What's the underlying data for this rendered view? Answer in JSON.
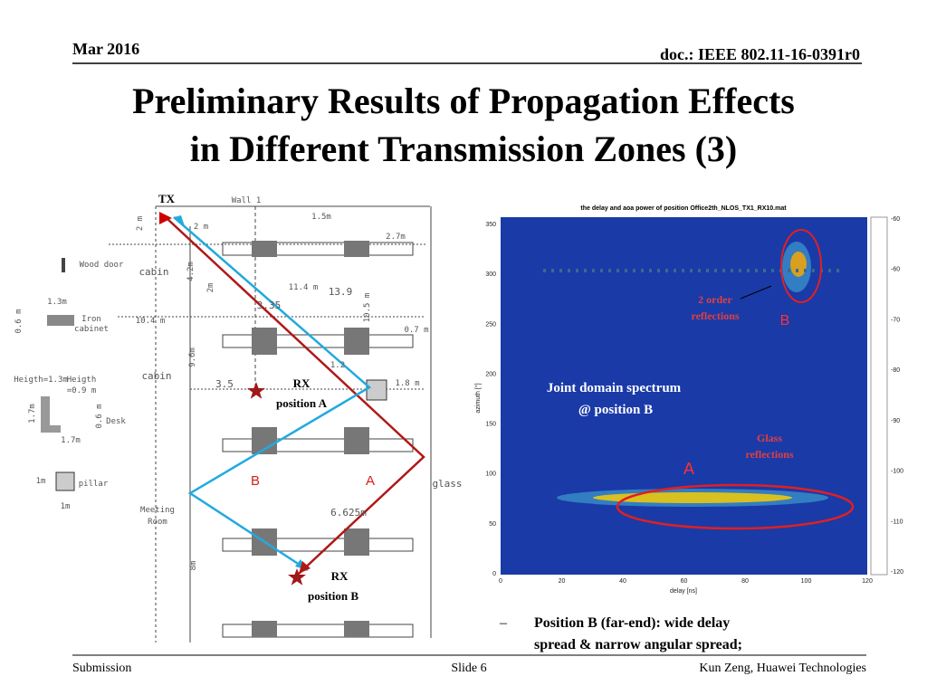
{
  "header": {
    "date": "Mar 2016",
    "doc": "doc.: IEEE 802.11-16-0391r0"
  },
  "title": [
    "Preliminary Results of Propagation Effects",
    "in Different Transmission Zones (3)"
  ],
  "floor_plan": {
    "labels": [
      "TX",
      "Wall 1",
      "1.5m",
      "2.7m",
      "2 m",
      "2 m",
      "Wood door",
      "cabin",
      "4.2m",
      "11.4 m",
      "13.9",
      "2m",
      "3.35",
      "10.5 m",
      "1.3m",
      "0.6 m",
      "Iron",
      "cabinet",
      "10.4 m",
      "0.7 m",
      "9.6m",
      "cabin",
      "3.5",
      "RX",
      "position A",
      "1.8 m",
      "1.2",
      "Heigth=1.3m",
      "Heigth",
      "=0.9 m",
      "1.7m",
      "0.6 m",
      "Desk",
      "1.7m",
      "1m",
      "pillar",
      "1m",
      "Meeting",
      "Room",
      "B",
      "A",
      "glass",
      "6.625m",
      "8m",
      "RX",
      "position B"
    ]
  },
  "spectrum": {
    "title": "the delay and aoa power of position Office2th_NLOS_TX1_RX10.mat",
    "x_label": "delay [ns]",
    "y_label": "azimuth [°]",
    "x_ticks": [
      "0",
      "20",
      "40",
      "60",
      "80",
      "100",
      "120"
    ],
    "y_ticks": [
      "0",
      "50",
      "100",
      "150",
      "200",
      "250",
      "300",
      "350"
    ],
    "colorbar_ticks": [
      "-60",
      "-60",
      "-70",
      "-80",
      "-90",
      "-100",
      "-110",
      "-120"
    ],
    "annotations": [
      "2 order",
      "reflections",
      "B",
      "Joint domain spectrum",
      "@ position B",
      "Glass",
      "reflections",
      "A"
    ]
  },
  "bullet": {
    "marker": "–",
    "text": [
      "Position B (far-end): wide delay",
      "spread & narrow angular spread;"
    ]
  },
  "footer": {
    "left": "Submission",
    "center": "Slide 6",
    "right": "Kun Zeng, Huawei Technologies"
  }
}
